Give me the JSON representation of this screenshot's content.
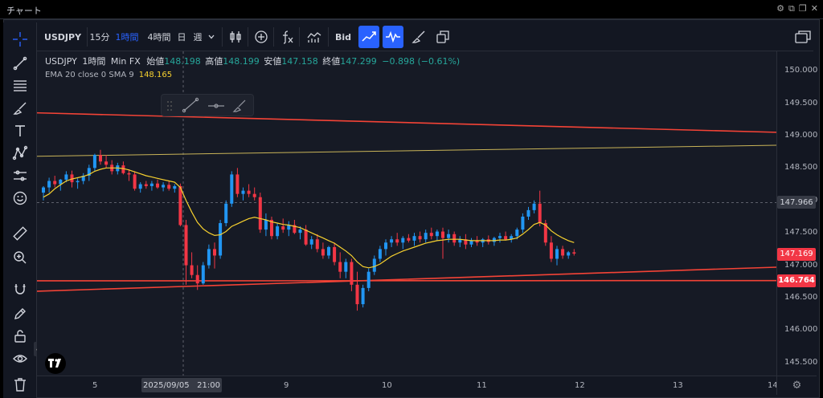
{
  "window": {
    "title": "チャート",
    "title_icons": [
      "gear-icon",
      "popout-icon",
      "restore-icon",
      "close-icon"
    ]
  },
  "toolbar": {
    "symbol": "USDJPY",
    "intervals": [
      "15分",
      "1時間",
      "4時間",
      "日",
      "週"
    ],
    "active_interval": "1時間",
    "price_source": "Bid",
    "icons": [
      "chevron-down-icon",
      "candles-icon",
      "plus-circle-icon",
      "fx-icon",
      "indicators-icon",
      "line-icon",
      "wave-icon",
      "brush-icon",
      "layers-icon",
      "layout-icon"
    ]
  },
  "legend": {
    "symbol": "USDJPY",
    "interval": "1時間",
    "source": "Min FX",
    "open_label": "始値",
    "open": "148.198",
    "high_label": "高値",
    "high": "148.199",
    "low_label": "安値",
    "low": "147.158",
    "close_label": "終値",
    "close": "147.299",
    "change": "−0.898 (−0.61%)"
  },
  "indicator": {
    "label": "EMA 20 close 0 SMA 9",
    "value": "148.165"
  },
  "crosshair": {
    "x_label": "2025/09/05   21:00",
    "price_label": "147.966"
  },
  "price_labels": {
    "current": "147.169",
    "line": "146.764"
  },
  "colors": {
    "up": "#26a69a",
    "down": "#ef5350",
    "candle_up": "#2196f3",
    "candle_down": "#f23645",
    "ema": "#f7d12f",
    "resistance": "#f44336",
    "trend_yellow": "#c9b458",
    "accent": "#2962ff"
  },
  "chart_data": {
    "type": "candlestick",
    "title": "USDJPY 1時間 Min FX",
    "ylim": [
      145.3,
      150.1
    ],
    "y_ticks": [
      "150.000",
      "149.500",
      "149.000",
      "148.500",
      "148.000",
      "147.500",
      "147.000",
      "146.500",
      "146.000",
      "145.500"
    ],
    "y_tick_values": [
      150.0,
      149.5,
      149.0,
      148.5,
      148.0,
      147.5,
      147.0,
      146.5,
      146.0,
      145.5
    ],
    "x_ticks": [
      "5",
      "9",
      "10",
      "11",
      "12",
      "13",
      "14"
    ],
    "grid": false,
    "candles_ohlc": [
      [
        148.12,
        148.22,
        148.0,
        148.2
      ],
      [
        148.2,
        148.35,
        148.12,
        148.3
      ],
      [
        148.3,
        148.38,
        148.2,
        148.25
      ],
      [
        148.25,
        148.33,
        148.15,
        148.32
      ],
      [
        148.32,
        148.45,
        148.28,
        148.4
      ],
      [
        148.4,
        148.46,
        148.2,
        148.28
      ],
      [
        148.28,
        148.34,
        148.18,
        148.3
      ],
      [
        148.3,
        148.42,
        148.25,
        148.38
      ],
      [
        148.38,
        148.55,
        148.3,
        148.5
      ],
      [
        148.5,
        148.72,
        148.45,
        148.7
      ],
      [
        148.7,
        148.78,
        148.55,
        148.6
      ],
      [
        148.6,
        148.7,
        148.5,
        148.55
      ],
      [
        148.55,
        148.62,
        148.4,
        148.45
      ],
      [
        148.45,
        148.58,
        148.4,
        148.54
      ],
      [
        148.54,
        148.6,
        148.4,
        148.42
      ],
      [
        148.42,
        148.48,
        148.3,
        148.4
      ],
      [
        148.4,
        148.45,
        148.15,
        148.18
      ],
      [
        148.18,
        148.28,
        148.12,
        148.25
      ],
      [
        148.25,
        148.3,
        148.18,
        148.22
      ],
      [
        148.22,
        148.3,
        148.15,
        148.26
      ],
      [
        148.26,
        148.32,
        148.18,
        148.2
      ],
      [
        148.2,
        148.28,
        148.14,
        148.24
      ],
      [
        148.24,
        148.3,
        148.15,
        148.18
      ],
      [
        148.18,
        148.25,
        148.12,
        148.22
      ],
      [
        148.22,
        148.26,
        147.6,
        147.62
      ],
      [
        147.62,
        147.7,
        146.7,
        147.0
      ],
      [
        147.0,
        147.2,
        146.8,
        146.85
      ],
      [
        146.85,
        147.0,
        146.62,
        146.72
      ],
      [
        146.72,
        147.05,
        146.7,
        147.0
      ],
      [
        147.0,
        147.32,
        146.95,
        147.25
      ],
      [
        147.25,
        147.35,
        146.95,
        147.15
      ],
      [
        147.15,
        147.7,
        147.1,
        147.65
      ],
      [
        147.65,
        148.0,
        147.6,
        147.95
      ],
      [
        147.95,
        148.45,
        147.9,
        148.4
      ],
      [
        148.4,
        148.5,
        148.05,
        148.1
      ],
      [
        148.1,
        148.2,
        148.0,
        148.15
      ],
      [
        148.15,
        148.25,
        148.05,
        148.1
      ],
      [
        148.1,
        148.2,
        148.0,
        148.05
      ],
      [
        148.05,
        148.12,
        147.5,
        147.55
      ],
      [
        147.55,
        147.8,
        147.45,
        147.7
      ],
      [
        147.7,
        147.75,
        147.4,
        147.45
      ],
      [
        147.45,
        147.65,
        147.4,
        147.6
      ],
      [
        147.6,
        147.72,
        147.5,
        147.55
      ],
      [
        147.55,
        147.68,
        147.45,
        147.62
      ],
      [
        147.62,
        147.7,
        147.48,
        147.5
      ],
      [
        147.5,
        147.6,
        147.4,
        147.55
      ],
      [
        147.55,
        147.62,
        147.3,
        147.32
      ],
      [
        147.32,
        147.45,
        147.25,
        147.4
      ],
      [
        147.4,
        147.48,
        147.2,
        147.25
      ],
      [
        147.25,
        147.35,
        147.1,
        147.15
      ],
      [
        147.15,
        147.3,
        147.1,
        147.28
      ],
      [
        147.28,
        147.35,
        147.0,
        147.05
      ],
      [
        147.05,
        147.2,
        146.8,
        146.9
      ],
      [
        146.9,
        147.1,
        146.8,
        147.05
      ],
      [
        147.05,
        147.1,
        146.6,
        146.7
      ],
      [
        146.7,
        146.9,
        146.3,
        146.4
      ],
      [
        146.4,
        146.7,
        146.35,
        146.65
      ],
      [
        146.65,
        146.95,
        146.6,
        146.9
      ],
      [
        146.9,
        147.15,
        146.85,
        147.1
      ],
      [
        147.1,
        147.3,
        147.05,
        147.25
      ],
      [
        147.25,
        147.4,
        147.15,
        147.35
      ],
      [
        147.35,
        147.45,
        147.28,
        147.4
      ],
      [
        147.4,
        147.5,
        147.3,
        147.35
      ],
      [
        147.35,
        147.45,
        147.25,
        147.42
      ],
      [
        147.42,
        147.48,
        147.35,
        147.38
      ],
      [
        147.38,
        147.5,
        147.3,
        147.45
      ],
      [
        147.45,
        147.52,
        147.35,
        147.4
      ],
      [
        147.4,
        147.55,
        147.35,
        147.5
      ],
      [
        147.5,
        147.58,
        147.4,
        147.45
      ],
      [
        147.45,
        147.55,
        147.38,
        147.52
      ],
      [
        147.52,
        147.58,
        147.1,
        147.42
      ],
      [
        147.42,
        147.55,
        147.35,
        147.48
      ],
      [
        147.48,
        147.52,
        147.3,
        147.35
      ],
      [
        147.35,
        147.45,
        147.28,
        147.4
      ],
      [
        147.4,
        147.48,
        147.25,
        147.32
      ],
      [
        147.32,
        147.42,
        147.28,
        147.38
      ],
      [
        147.38,
        147.45,
        147.3,
        147.35
      ],
      [
        147.35,
        147.42,
        147.28,
        147.4
      ],
      [
        147.4,
        147.46,
        147.32,
        147.36
      ],
      [
        147.36,
        147.44,
        147.3,
        147.42
      ],
      [
        147.42,
        147.5,
        147.35,
        147.45
      ],
      [
        147.45,
        147.52,
        147.38,
        147.4
      ],
      [
        147.4,
        147.48,
        147.35,
        147.45
      ],
      [
        147.45,
        147.58,
        147.4,
        147.55
      ],
      [
        147.55,
        147.8,
        147.5,
        147.75
      ],
      [
        147.75,
        147.9,
        147.7,
        147.85
      ],
      [
        147.85,
        148.0,
        147.8,
        147.95
      ],
      [
        147.95,
        148.15,
        147.6,
        147.65
      ],
      [
        147.65,
        147.7,
        147.3,
        147.35
      ],
      [
        147.35,
        147.45,
        147.05,
        147.1
      ],
      [
        147.1,
        147.3,
        147.0,
        147.25
      ],
      [
        147.25,
        147.3,
        147.1,
        147.15
      ],
      [
        147.15,
        147.22,
        147.1,
        147.2
      ],
      [
        147.2,
        147.25,
        147.15,
        147.18
      ]
    ],
    "ema_values": [
      148.05,
      148.1,
      148.18,
      148.24,
      148.3,
      148.33,
      148.35,
      148.37,
      148.4,
      148.45,
      148.48,
      148.5,
      148.5,
      148.5,
      148.49,
      148.47,
      148.44,
      148.41,
      148.38,
      148.36,
      148.34,
      148.32,
      148.3,
      148.28,
      148.2,
      148.0,
      147.82,
      147.66,
      147.56,
      147.5,
      147.46,
      147.47,
      147.52,
      147.6,
      147.64,
      147.68,
      147.72,
      147.74,
      147.72,
      147.7,
      147.67,
      147.65,
      147.63,
      147.62,
      147.6,
      147.58,
      147.54,
      147.5,
      147.46,
      147.42,
      147.38,
      147.34,
      147.28,
      147.22,
      147.15,
      147.05,
      146.98,
      146.96,
      146.98,
      147.02,
      147.08,
      147.14,
      147.18,
      147.22,
      147.25,
      147.28,
      147.31,
      147.34,
      147.36,
      147.38,
      147.39,
      147.4,
      147.4,
      147.4,
      147.39,
      147.38,
      147.38,
      147.38,
      147.38,
      147.38,
      147.39,
      147.39,
      147.4,
      147.42,
      147.48,
      147.55,
      147.63,
      147.66,
      147.62,
      147.53,
      147.47,
      147.42,
      147.38,
      147.35
    ],
    "lines": [
      {
        "name": "resistance-upper",
        "color": "#f44336",
        "from": [
          0,
          149.35
        ],
        "to": [
          1,
          149.05
        ]
      },
      {
        "name": "trend-yellow",
        "color": "#c9b458",
        "from": [
          0,
          148.68
        ],
        "to": [
          1,
          148.85
        ]
      },
      {
        "name": "support-rising",
        "color": "#f44336",
        "from": [
          0,
          146.6
        ],
        "to": [
          1,
          146.97
        ]
      },
      {
        "name": "support-flat",
        "color": "#f44336",
        "from": [
          0,
          146.76
        ],
        "to": [
          1,
          146.764
        ]
      }
    ]
  }
}
